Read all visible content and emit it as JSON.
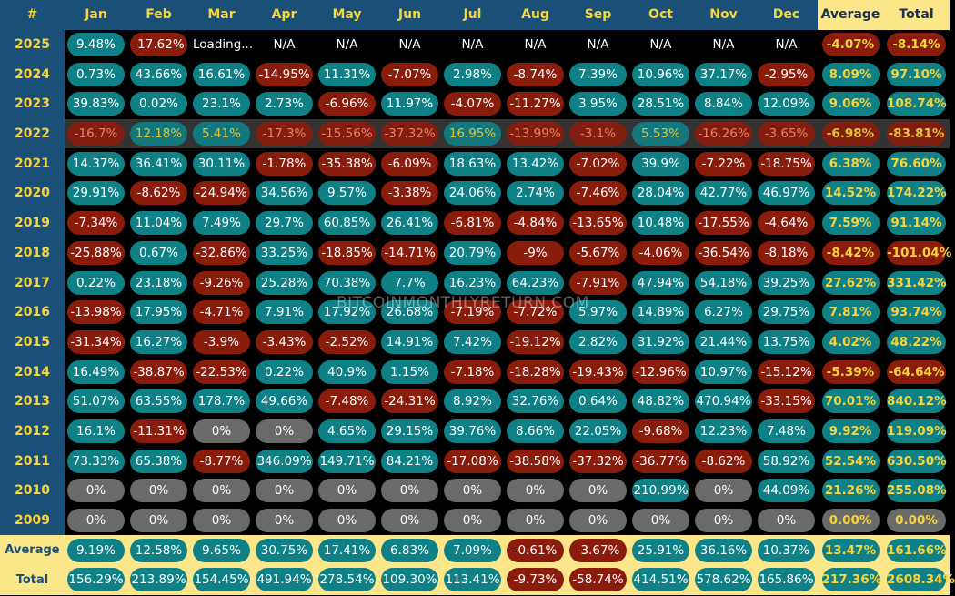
{
  "header": {
    "hash": "#",
    "months": [
      "Jan",
      "Feb",
      "Mar",
      "Apr",
      "May",
      "Jun",
      "Jul",
      "Aug",
      "Sep",
      "Oct",
      "Nov",
      "Dec"
    ],
    "average": "Average",
    "total": "Total"
  },
  "watermark": "BITCOINMONTHLYRETURN.COM",
  "rows": [
    {
      "year": "2025",
      "dim": false,
      "cells": [
        "9.48%",
        "-17.62%",
        "Loading...",
        "N/A",
        "N/A",
        "N/A",
        "N/A",
        "N/A",
        "N/A",
        "N/A",
        "N/A",
        "N/A"
      ],
      "average": "-4.07%",
      "total": "-8.14%"
    },
    {
      "year": "2024",
      "dim": false,
      "cells": [
        "0.73%",
        "43.66%",
        "16.61%",
        "-14.95%",
        "11.31%",
        "-7.07%",
        "2.98%",
        "-8.74%",
        "7.39%",
        "10.96%",
        "37.17%",
        "-2.95%"
      ],
      "average": "8.09%",
      "total": "97.10%"
    },
    {
      "year": "2023",
      "dim": false,
      "cells": [
        "39.83%",
        "0.02%",
        "23.1%",
        "2.73%",
        "-6.96%",
        "11.97%",
        "-4.07%",
        "-11.27%",
        "3.95%",
        "28.51%",
        "8.84%",
        "12.09%"
      ],
      "average": "9.06%",
      "total": "108.74%"
    },
    {
      "year": "2022",
      "dim": true,
      "cells": [
        "-16.7%",
        "12.18%",
        "5.41%",
        "-17.3%",
        "-15.56%",
        "-37.32%",
        "16.95%",
        "-13.99%",
        "-3.1%",
        "5.53%",
        "-16.26%",
        "-3.65%"
      ],
      "average": "-6.98%",
      "total": "-83.81%"
    },
    {
      "year": "2021",
      "dim": false,
      "cells": [
        "14.37%",
        "36.41%",
        "30.11%",
        "-1.78%",
        "-35.38%",
        "-6.09%",
        "18.63%",
        "13.42%",
        "-7.02%",
        "39.9%",
        "-7.22%",
        "-18.75%"
      ],
      "average": "6.38%",
      "total": "76.60%"
    },
    {
      "year": "2020",
      "dim": false,
      "cells": [
        "29.91%",
        "-8.62%",
        "-24.94%",
        "34.56%",
        "9.57%",
        "-3.38%",
        "24.06%",
        "2.74%",
        "-7.46%",
        "28.04%",
        "42.77%",
        "46.97%"
      ],
      "average": "14.52%",
      "total": "174.22%"
    },
    {
      "year": "2019",
      "dim": false,
      "cells": [
        "-7.34%",
        "11.04%",
        "7.49%",
        "29.7%",
        "60.85%",
        "26.41%",
        "-6.81%",
        "-4.84%",
        "-13.65%",
        "10.48%",
        "-17.55%",
        "-4.64%"
      ],
      "average": "7.59%",
      "total": "91.14%"
    },
    {
      "year": "2018",
      "dim": false,
      "cells": [
        "-25.88%",
        "0.67%",
        "-32.86%",
        "33.25%",
        "-18.85%",
        "-14.71%",
        "20.79%",
        "-9%",
        "-5.67%",
        "-4.06%",
        "-36.54%",
        "-8.18%"
      ],
      "average": "-8.42%",
      "total": "-101.04%"
    },
    {
      "year": "2017",
      "dim": false,
      "cells": [
        "0.22%",
        "23.18%",
        "-9.26%",
        "25.28%",
        "70.38%",
        "7.7%",
        "16.23%",
        "64.23%",
        "-7.91%",
        "47.94%",
        "54.18%",
        "39.25%"
      ],
      "average": "27.62%",
      "total": "331.42%"
    },
    {
      "year": "2016",
      "dim": false,
      "cells": [
        "-13.98%",
        "17.95%",
        "-4.71%",
        "7.91%",
        "17.92%",
        "26.68%",
        "-7.19%",
        "-7.72%",
        "5.97%",
        "14.89%",
        "6.27%",
        "29.75%"
      ],
      "average": "7.81%",
      "total": "93.74%"
    },
    {
      "year": "2015",
      "dim": false,
      "cells": [
        "-31.34%",
        "16.27%",
        "-3.9%",
        "-3.43%",
        "-2.52%",
        "14.91%",
        "7.42%",
        "-19.12%",
        "2.82%",
        "31.92%",
        "21.44%",
        "13.75%"
      ],
      "average": "4.02%",
      "total": "48.22%"
    },
    {
      "year": "2014",
      "dim": false,
      "cells": [
        "16.49%",
        "-38.87%",
        "-22.53%",
        "0.22%",
        "40.9%",
        "1.15%",
        "-7.18%",
        "-18.28%",
        "-19.43%",
        "-12.96%",
        "10.97%",
        "-15.12%"
      ],
      "average": "-5.39%",
      "total": "-64.64%"
    },
    {
      "year": "2013",
      "dim": false,
      "cells": [
        "51.07%",
        "63.55%",
        "178.7%",
        "49.66%",
        "-7.48%",
        "-24.31%",
        "8.92%",
        "32.76%",
        "0.64%",
        "48.82%",
        "470.94%",
        "-33.15%"
      ],
      "average": "70.01%",
      "total": "840.12%"
    },
    {
      "year": "2012",
      "dim": false,
      "cells": [
        "16.1%",
        "-11.31%",
        "0%",
        "0%",
        "4.65%",
        "29.15%",
        "39.76%",
        "8.66%",
        "22.05%",
        "-9.68%",
        "12.23%",
        "7.48%"
      ],
      "average": "9.92%",
      "total": "119.09%"
    },
    {
      "year": "2011",
      "dim": false,
      "cells": [
        "73.33%",
        "65.38%",
        "-8.77%",
        "346.09%",
        "149.71%",
        "84.21%",
        "-17.08%",
        "-38.58%",
        "-37.32%",
        "-36.77%",
        "-8.62%",
        "58.92%"
      ],
      "average": "52.54%",
      "total": "630.50%"
    },
    {
      "year": "2010",
      "dim": false,
      "cells": [
        "0%",
        "0%",
        "0%",
        "0%",
        "0%",
        "0%",
        "0%",
        "0%",
        "0%",
        "210.99%",
        "0%",
        "44.09%"
      ],
      "average": "21.26%",
      "total": "255.08%"
    },
    {
      "year": "2009",
      "dim": false,
      "cells": [
        "0%",
        "0%",
        "0%",
        "0%",
        "0%",
        "0%",
        "0%",
        "0%",
        "0%",
        "0%",
        "0%",
        "0%"
      ],
      "average": "0.00%",
      "total": "0.00%"
    }
  ],
  "footer": [
    {
      "label": "Average",
      "cells": [
        "9.19%",
        "12.58%",
        "9.65%",
        "30.75%",
        "17.41%",
        "6.83%",
        "7.09%",
        "-0.61%",
        "-3.67%",
        "25.91%",
        "36.16%",
        "10.37%"
      ],
      "average": "13.47%",
      "total": "161.66%"
    },
    {
      "label": "Total",
      "cells": [
        "156.29%",
        "213.89%",
        "154.45%",
        "491.94%",
        "278.54%",
        "109.30%",
        "113.41%",
        "-9.73%",
        "-58.74%",
        "414.51%",
        "578.62%",
        "165.86%"
      ],
      "average": "217.36%",
      "total": "2608.34%"
    }
  ],
  "colors": {
    "positive": "#0f8086",
    "negative": "#8a1c0c",
    "zero": "#6a6a6a",
    "header_bg": "#1a4f78",
    "accent_yellow": "#f7d33c",
    "footer_bg": "#fbe78a"
  }
}
